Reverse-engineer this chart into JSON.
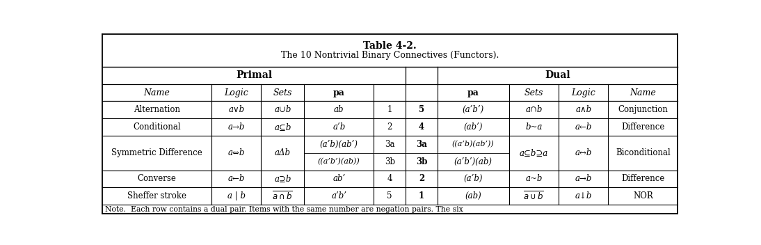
{
  "title_line1": "Table 4-2.",
  "title_line2": "The 10 Nontrivial Binary Connectives (Functors).",
  "note": "Note.  Each row contains a dual pair. Items with the same number are negation pairs. The six",
  "col_widths_raw": [
    1.65,
    0.75,
    0.65,
    1.05,
    0.48,
    0.48,
    1.08,
    0.75,
    0.75,
    1.05
  ],
  "header_primal": "Primal",
  "header_dual": "Dual",
  "sh_texts": [
    "Name",
    "Logic",
    "Sets",
    "pa",
    "",
    "",
    "pa",
    "Sets",
    "Logic",
    "Name"
  ],
  "sh_italic": [
    true,
    true,
    true,
    false,
    false,
    false,
    false,
    true,
    true,
    true
  ],
  "sh_bold": [
    false,
    false,
    false,
    true,
    false,
    false,
    true,
    false,
    false,
    false
  ],
  "row_alt": [
    "Alternation",
    "a∨b",
    "a∪b",
    "ab",
    "1",
    "5",
    "(a’b’)",
    "a∩b",
    "a∧b",
    "Conjunction"
  ],
  "row_alt_italic": [
    false,
    true,
    true,
    true,
    false,
    false,
    true,
    true,
    true,
    false
  ],
  "row_cond": [
    "Conditional",
    "a→b",
    "a⊆b",
    "a’b",
    "2",
    "4",
    "(ab’)",
    "b~a",
    "a←b",
    "Difference"
  ],
  "row_cond_italic": [
    false,
    true,
    true,
    true,
    false,
    false,
    true,
    true,
    true,
    false
  ],
  "row_conv": [
    "Converse",
    "a←b",
    "a⊇b",
    "ab’",
    "4",
    "2",
    "(a’b)",
    "a~b",
    "a→b",
    "Difference"
  ],
  "row_conv_italic": [
    false,
    true,
    true,
    true,
    false,
    false,
    true,
    true,
    true,
    false
  ],
  "sym_left_name": "Symmetric Difference",
  "sym_left_logic": "a⇔b",
  "sym_left_sets": "aΔb",
  "sym_pa_top": "(a’b)(ab’)",
  "sym_pa_bot": "((a’b’)(ab))",
  "sym_num_left_top": "3a",
  "sym_num_left_bot": "3b",
  "sym_num_right_top": "3a",
  "sym_num_right_bot": "3b",
  "sym_pa_right_top": "((a’b)(ab’))",
  "sym_pa_right_bot": "(a’b’)(ab)",
  "sym_sets_right": "a⊆b⊇a",
  "sym_logic_right": "a↔b",
  "sym_name_right": "Biconditional",
  "shef_name": "Sheffer stroke",
  "shef_logic": "a | b",
  "shef_pa": "a’b’",
  "shef_num_left": "5",
  "shef_num_right": "1",
  "shef_pa_right": "(ab)",
  "shef_logic_right": "a↓b",
  "shef_name_right": "NOR",
  "bg_color": "#ffffff",
  "border_color": "#000000",
  "text_color": "#000000"
}
